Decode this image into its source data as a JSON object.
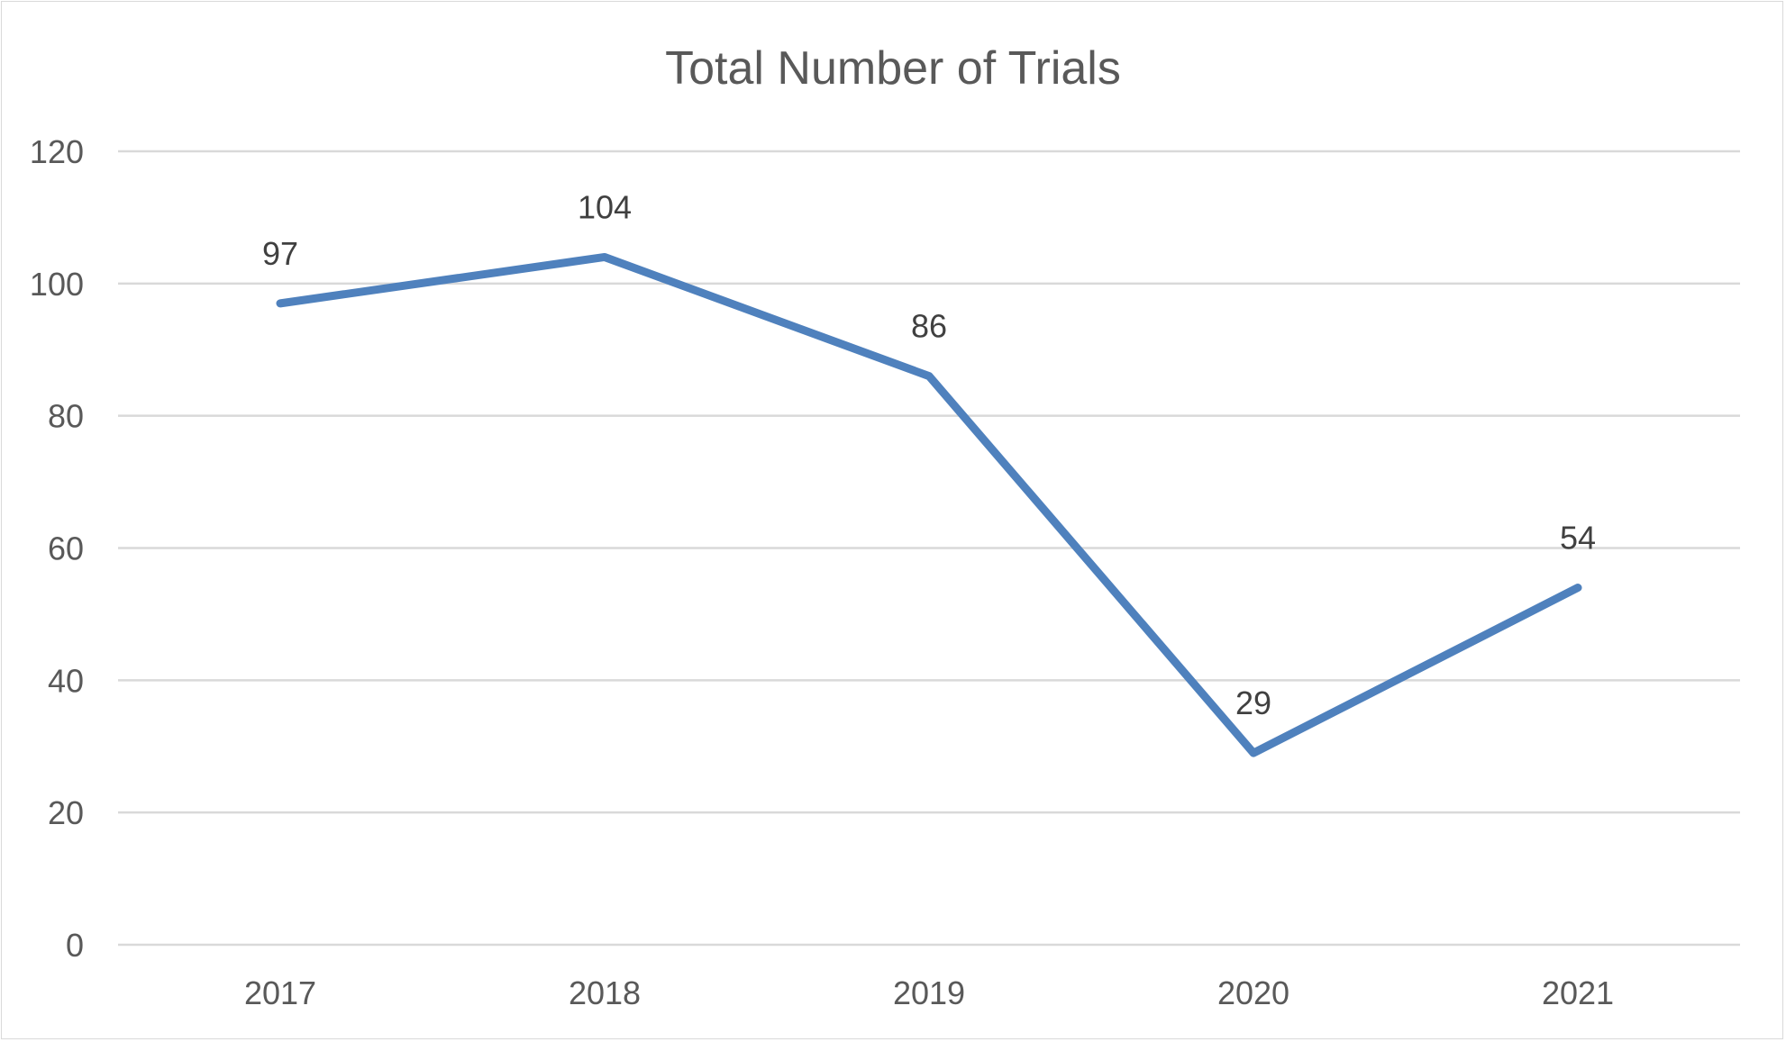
{
  "chart_data": {
    "type": "line",
    "title": "Total Number of Trials",
    "categories": [
      "2017",
      "2018",
      "2019",
      "2020",
      "2021"
    ],
    "series": [
      {
        "name": "Total Number of Trials",
        "values": [
          97,
          104,
          86,
          29,
          54
        ]
      }
    ],
    "data_labels": [
      "97",
      "104",
      "86",
      "29",
      "54"
    ],
    "ylim": [
      0,
      120
    ],
    "yticks": [
      0,
      20,
      40,
      60,
      80,
      100,
      120
    ],
    "ytick_labels": [
      "0",
      "20",
      "40",
      "60",
      "80",
      "100",
      "120"
    ],
    "xlabel": "",
    "ylabel": "",
    "grid": true,
    "legend": "none",
    "line_color": "#4f81bd"
  }
}
